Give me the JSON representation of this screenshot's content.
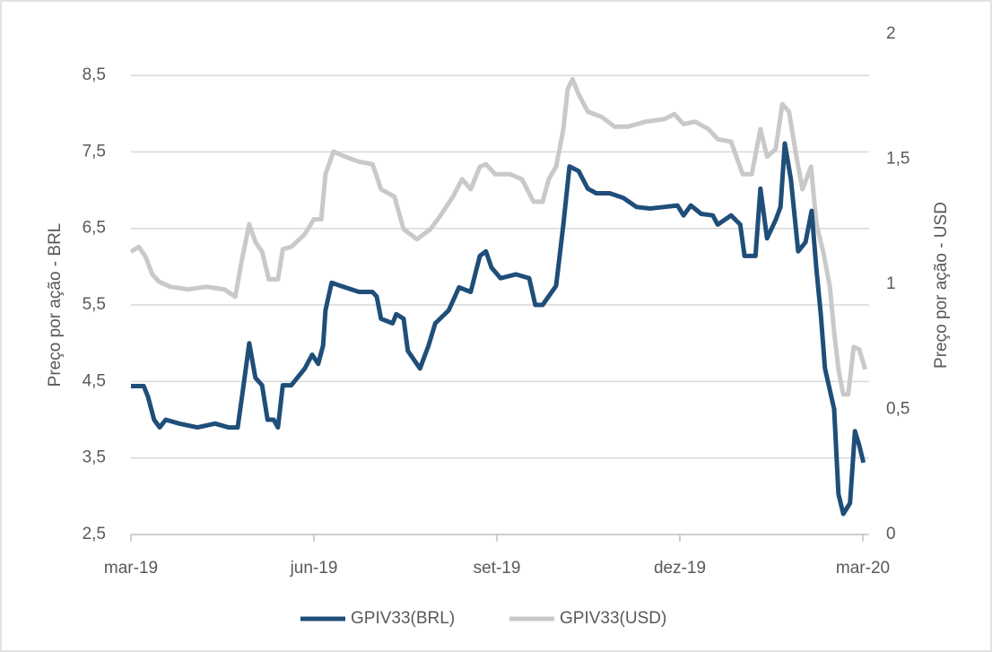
{
  "chart_data": {
    "type": "line",
    "y_label": "Preço por ação - BRL",
    "y2_label": "Preço por ação - USD",
    "xlim": [
      0,
      12.1
    ],
    "xticks": [
      {
        "value": 0,
        "label": "mar-19"
      },
      {
        "value": 3,
        "label": "jun-19"
      },
      {
        "value": 6,
        "label": "set-19"
      },
      {
        "value": 9,
        "label": "dez-19"
      },
      {
        "value": 12,
        "label": "mar-20"
      }
    ],
    "ylim": [
      2.5,
      9.04
    ],
    "yticks": [
      {
        "value": 2.5,
        "label": "2,5"
      },
      {
        "value": 3.5,
        "label": "3,5"
      },
      {
        "value": 4.5,
        "label": "4,5"
      },
      {
        "value": 5.5,
        "label": "5,5"
      },
      {
        "value": 6.5,
        "label": "6,5"
      },
      {
        "value": 7.5,
        "label": "7,5"
      },
      {
        "value": 8.5,
        "label": "8,5"
      }
    ],
    "y2lim": [
      0,
      2
    ],
    "y2ticks": [
      0,
      {
        "value": 0.5,
        "label": "0,5"
      },
      1,
      {
        "value": 1.5,
        "label": "1,5"
      },
      2
    ],
    "grid": true,
    "legend": "bottom",
    "series": [
      {
        "name": "GPIV33(BRL)",
        "color": "#1f4e79",
        "x": [
          0,
          0.21,
          0.28,
          0.38,
          0.47,
          0.57,
          0.79,
          1.09,
          1.38,
          1.6,
          1.75,
          1.82,
          1.94,
          2.04,
          2.15,
          2.24,
          2.34,
          2.41,
          2.49,
          2.63,
          2.85,
          2.97,
          3.07,
          3.15,
          3.19,
          3.29,
          3.51,
          3.74,
          3.96,
          4.03,
          4.1,
          4.29,
          4.35,
          4.47,
          4.54,
          4.74,
          4.88,
          4.99,
          5.21,
          5.38,
          5.57,
          5.72,
          5.82,
          5.91,
          6.06,
          6.31,
          6.53,
          6.63,
          6.75,
          6.97,
          7.09,
          7.19,
          7.34,
          7.49,
          7.63,
          7.85,
          8.07,
          8.29,
          8.51,
          8.74,
          8.96,
          9.06,
          9.18,
          9.35,
          9.54,
          9.62,
          9.84,
          9.99,
          10.06,
          10.24,
          10.32,
          10.43,
          10.57,
          10.65,
          10.72,
          10.82,
          10.94,
          11.06,
          11.16,
          11.24,
          11.31,
          11.38,
          11.53,
          11.6,
          11.68,
          11.79,
          11.87,
          11.94,
          12.01
        ],
        "values": [
          4.44,
          4.44,
          4.3,
          4.0,
          3.9,
          4.0,
          3.95,
          3.9,
          3.95,
          3.9,
          3.9,
          4.3,
          5.0,
          4.55,
          4.45,
          4.0,
          4.0,
          3.9,
          4.45,
          4.45,
          4.67,
          4.85,
          4.73,
          4.97,
          5.43,
          5.79,
          5.73,
          5.67,
          5.67,
          5.61,
          5.32,
          5.26,
          5.38,
          5.32,
          4.9,
          4.67,
          4.97,
          5.26,
          5.43,
          5.73,
          5.67,
          6.14,
          6.2,
          5.99,
          5.85,
          5.9,
          5.85,
          5.5,
          5.5,
          5.75,
          6.55,
          7.31,
          7.25,
          7.02,
          6.96,
          6.96,
          6.9,
          6.78,
          6.76,
          6.78,
          6.8,
          6.67,
          6.8,
          6.69,
          6.67,
          6.55,
          6.67,
          6.55,
          6.14,
          6.14,
          7.02,
          6.37,
          6.61,
          6.78,
          7.61,
          7.14,
          6.2,
          6.32,
          6.73,
          5.96,
          5.38,
          4.67,
          4.14,
          3.03,
          2.77,
          2.91,
          3.85,
          3.67,
          3.44
        ]
      },
      {
        "name": "GPIV33(USD)",
        "color": "#c9c9c9",
        "axis": "y2",
        "x": [
          0,
          0.13,
          0.24,
          0.35,
          0.46,
          0.65,
          0.94,
          1.24,
          1.53,
          1.71,
          1.82,
          1.94,
          2.04,
          2.15,
          2.26,
          2.41,
          2.49,
          2.63,
          2.85,
          3.0,
          3.12,
          3.19,
          3.32,
          3.51,
          3.74,
          3.96,
          4.1,
          4.32,
          4.47,
          4.69,
          4.91,
          5.06,
          5.28,
          5.43,
          5.57,
          5.72,
          5.82,
          5.97,
          6.21,
          6.41,
          6.6,
          6.75,
          6.85,
          6.97,
          7.09,
          7.16,
          7.24,
          7.34,
          7.49,
          7.71,
          7.93,
          8.15,
          8.44,
          8.74,
          8.91,
          9.06,
          9.25,
          9.47,
          9.62,
          9.84,
          10.03,
          10.18,
          10.32,
          10.43,
          10.57,
          10.68,
          10.79,
          10.91,
          11.01,
          11.15,
          11.24,
          11.35,
          11.46,
          11.53,
          11.6,
          11.68,
          11.76,
          11.85,
          11.94,
          12.04
        ],
        "values": [
          1.13,
          1.15,
          1.11,
          1.04,
          1.01,
          0.99,
          0.98,
          0.99,
          0.98,
          0.95,
          1.1,
          1.24,
          1.17,
          1.13,
          1.02,
          1.02,
          1.14,
          1.15,
          1.2,
          1.26,
          1.26,
          1.44,
          1.53,
          1.51,
          1.49,
          1.48,
          1.38,
          1.35,
          1.22,
          1.18,
          1.22,
          1.27,
          1.35,
          1.42,
          1.38,
          1.47,
          1.48,
          1.44,
          1.44,
          1.42,
          1.33,
          1.33,
          1.42,
          1.47,
          1.62,
          1.78,
          1.82,
          1.76,
          1.69,
          1.67,
          1.63,
          1.63,
          1.65,
          1.66,
          1.68,
          1.64,
          1.65,
          1.62,
          1.58,
          1.57,
          1.44,
          1.44,
          1.62,
          1.51,
          1.54,
          1.72,
          1.69,
          1.51,
          1.38,
          1.47,
          1.24,
          1.13,
          0.99,
          0.81,
          0.66,
          0.56,
          0.56,
          0.75,
          0.74,
          0.66
        ]
      }
    ]
  }
}
